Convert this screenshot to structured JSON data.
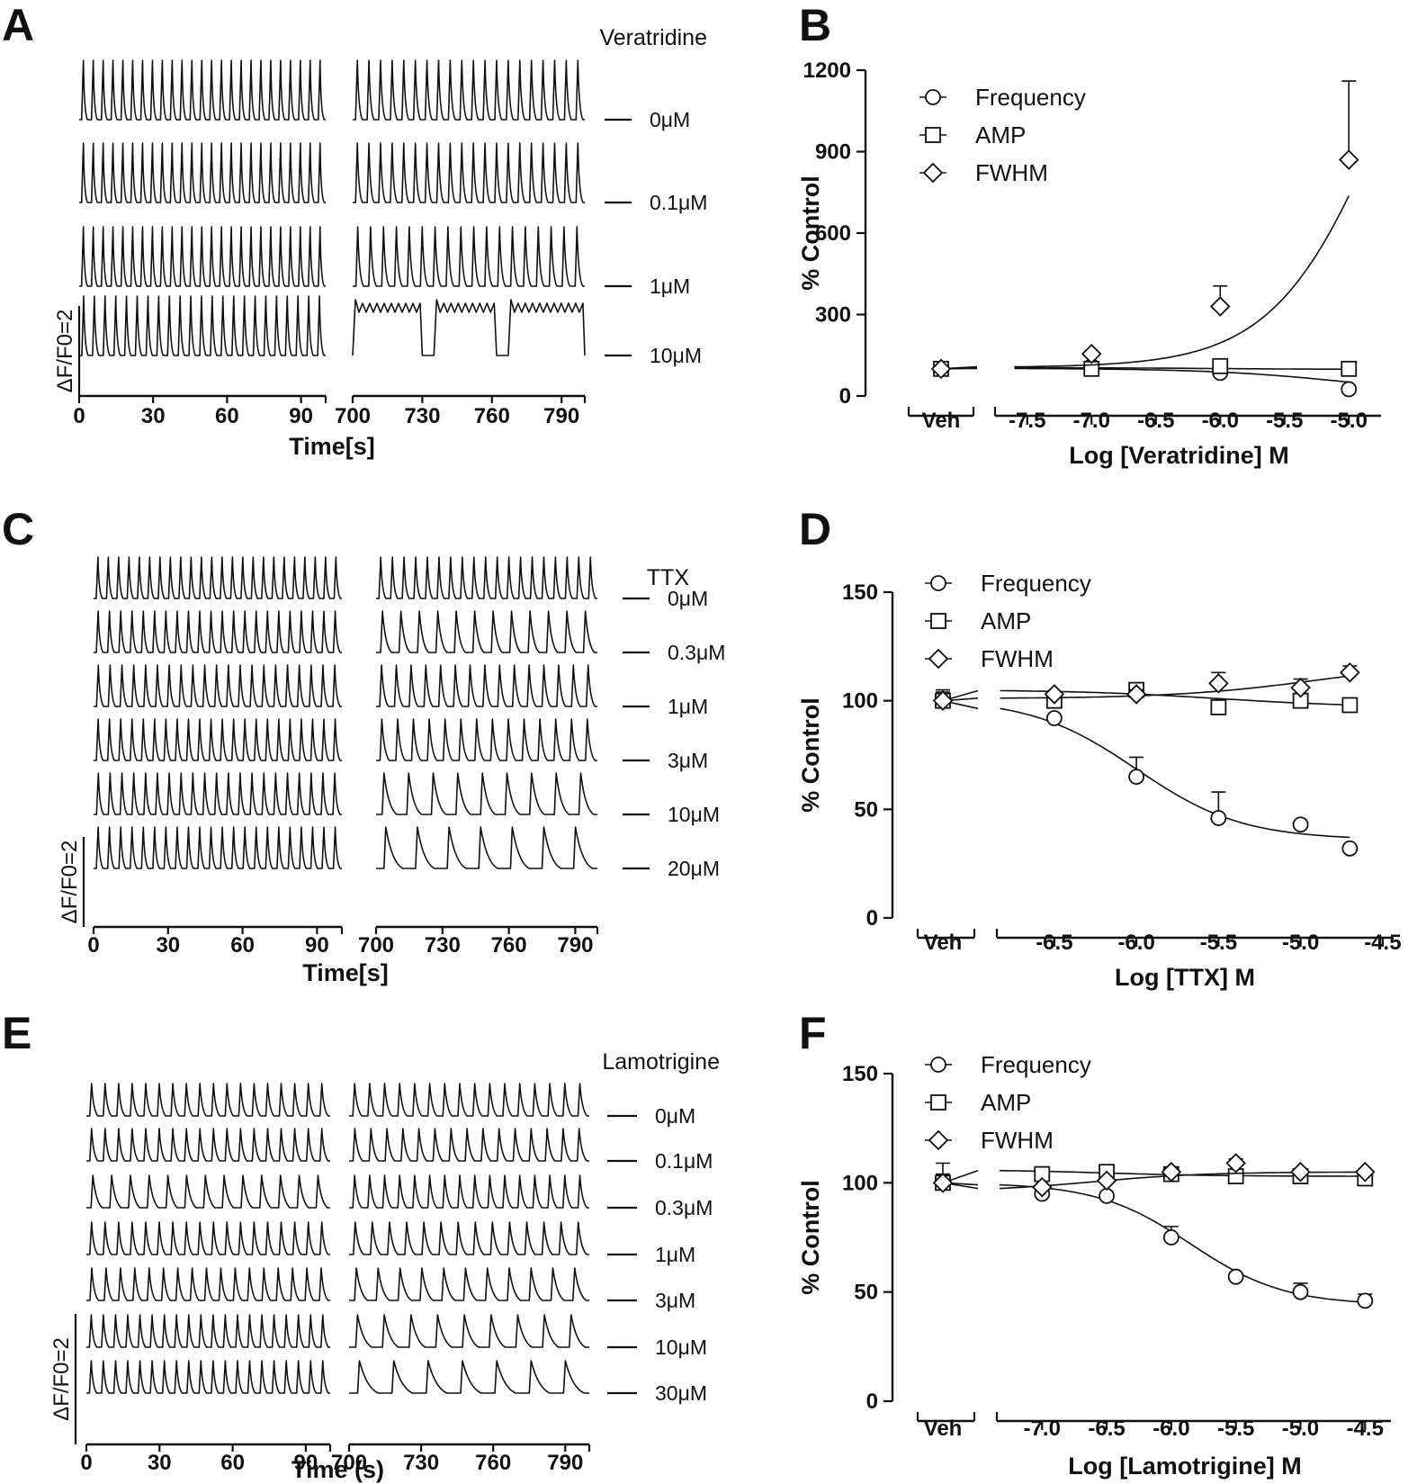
{
  "traces": [
    {
      "panel": "A",
      "drug": "Veratridine",
      "xlabel": "Time[s]",
      "scale_label": "ΔF/F0=2",
      "left_ticks": [
        0,
        30,
        60,
        90
      ],
      "right_ticks": [
        700,
        730,
        760,
        790
      ],
      "concentrations": [
        "0μM",
        "0.1μM",
        "1μM",
        "10μM"
      ],
      "beats_left": [
        25,
        25,
        25,
        23
      ],
      "beats_right": [
        20,
        20,
        18,
        0
      ]
    },
    {
      "panel": "C",
      "drug": "TTX",
      "xlabel": "Time[s]",
      "scale_label": "ΔF/F0=2",
      "left_ticks": [
        0,
        30,
        60,
        90
      ],
      "right_ticks": [
        700,
        730,
        760,
        790
      ],
      "concentrations": [
        "0μM",
        "0.3μM",
        "1μM",
        "3μM",
        "10μM",
        "20μM"
      ],
      "beats_left": [
        24,
        22,
        21,
        22,
        21,
        22
      ],
      "beats_right": [
        19,
        12,
        15,
        14,
        9,
        7
      ]
    },
    {
      "panel": "E",
      "drug": "Lamotrigine",
      "xlabel": "Time (s)",
      "scale_label": "ΔF/F0=2",
      "left_ticks": [
        0,
        30,
        60,
        90
      ],
      "right_ticks": [
        700,
        730,
        760,
        790
      ],
      "concentrations": [
        "0μM",
        "0.1μM",
        "0.3μM",
        "1μM",
        "3μM",
        "10μM",
        "30μM"
      ],
      "beats_left": [
        18,
        18,
        13,
        18,
        17,
        20,
        20
      ],
      "beats_right": [
        16,
        15,
        16,
        14,
        11,
        9,
        7
      ]
    }
  ],
  "chart_data": [
    {
      "panel": "B",
      "type": "line",
      "xlabel": "Log [Veratridine] M",
      "ylabel": "% Control",
      "veh_label": "Veh",
      "ylim": [
        0,
        1200
      ],
      "yticks": [
        0,
        300,
        600,
        900,
        1200
      ],
      "xlim": [
        -7.75,
        -4.75
      ],
      "xticks": [
        -7.5,
        -7.0,
        -6.5,
        -6.0,
        -5.5,
        -5.0
      ],
      "xtick_labels": [
        "-7.5",
        "-7.0",
        "-6.5",
        "-6.0",
        "-5.5",
        "-5.0"
      ],
      "series": [
        {
          "name": "Frequency",
          "marker": "circle",
          "veh": 100,
          "veh_err": 10,
          "x": [
            -7.0,
            -6.0,
            -5.0
          ],
          "values": [
            110,
            85,
            25
          ],
          "err": [
            0,
            0,
            0
          ],
          "fit": {
            "bottom": 0,
            "top": 102,
            "logec50": -5.0,
            "hill": -0.8
          }
        },
        {
          "name": "AMP",
          "marker": "square",
          "veh": 100,
          "veh_err": 8,
          "x": [
            -7.0,
            -6.0,
            -5.0
          ],
          "values": [
            100,
            110,
            100
          ],
          "err": [
            0,
            0,
            0
          ],
          "fit": {
            "bottom": 98,
            "top": 104,
            "logec50": -6.0,
            "hill": -1.0
          }
        },
        {
          "name": "FWHM",
          "marker": "diamond",
          "veh": 100,
          "veh_err": 8,
          "x": [
            -7.0,
            -6.0,
            -5.0
          ],
          "values": [
            155,
            330,
            870
          ],
          "err": [
            0,
            75,
            290
          ],
          "fit": {
            "bottom": 105,
            "top": 2000,
            "logec50": -4.7,
            "hill": 1.0
          }
        }
      ]
    },
    {
      "panel": "D",
      "type": "line",
      "xlabel": "Log [TTX] M",
      "ylabel": "% Control",
      "veh_label": "Veh",
      "ylim": [
        0,
        150
      ],
      "yticks": [
        0,
        50,
        100,
        150
      ],
      "xlim": [
        -6.85,
        -4.45
      ],
      "xticks": [
        -6.5,
        -6.0,
        -5.5,
        -5.0,
        -4.5
      ],
      "xtick_labels": [
        "-6.5",
        "-6.0",
        "-5.5",
        "-5.0",
        "-4.5"
      ],
      "series": [
        {
          "name": "Frequency",
          "marker": "circle",
          "veh": 100,
          "veh_err": 3,
          "x": [
            -6.5,
            -6.0,
            -5.5,
            -5.0,
            -4.7
          ],
          "values": [
            92,
            65,
            46,
            43,
            32
          ],
          "err": [
            0,
            9,
            12,
            0,
            0
          ],
          "fit": {
            "bottom": 36,
            "top": 101,
            "logec50": -6.0,
            "hill": -1.35
          }
        },
        {
          "name": "AMP",
          "marker": "square",
          "veh": 100,
          "veh_err": 5,
          "x": [
            -6.5,
            -6.0,
            -5.5,
            -5.0,
            -4.7
          ],
          "values": [
            100,
            105,
            97,
            100,
            98
          ],
          "err": [
            0,
            1,
            2,
            2,
            1
          ],
          "fit": {
            "bottom": 97,
            "top": 105,
            "logec50": -5.5,
            "hill": -1.0
          }
        },
        {
          "name": "FWHM",
          "marker": "diamond",
          "veh": 100,
          "veh_err": 4,
          "x": [
            -6.5,
            -6.0,
            -5.5,
            -5.0,
            -4.7
          ],
          "values": [
            103,
            103,
            108,
            106,
            113
          ],
          "err": [
            0,
            2,
            5,
            4,
            3
          ],
          "fit": {
            "bottom": 101,
            "top": 118,
            "logec50": -4.9,
            "hill": 1.0
          }
        }
      ]
    },
    {
      "panel": "F",
      "type": "line",
      "xlabel": "Log [Lamotrigine] M",
      "ylabel": "% Control",
      "veh_label": "Veh",
      "ylim": [
        0,
        150
      ],
      "yticks": [
        0,
        50,
        100,
        150
      ],
      "xlim": [
        -7.35,
        -4.3
      ],
      "xticks": [
        -7.0,
        -6.5,
        -6.0,
        -5.5,
        -5.0,
        -4.5
      ],
      "xtick_labels": [
        "-7.0",
        "-6.5",
        "-6.0",
        "-5.5",
        "-5.0",
        "-4.5"
      ],
      "series": [
        {
          "name": "Frequency",
          "marker": "circle",
          "veh": 100,
          "veh_err": 9,
          "x": [
            -7.0,
            -6.5,
            -6.0,
            -5.5,
            -5.0,
            -4.5
          ],
          "values": [
            95,
            94,
            75,
            57,
            50,
            46
          ],
          "err": [
            0,
            0,
            5,
            1,
            4,
            3
          ],
          "fit": {
            "bottom": 44,
            "top": 100,
            "logec50": -5.85,
            "hill": -1.2
          }
        },
        {
          "name": "AMP",
          "marker": "square",
          "veh": 100,
          "veh_err": 4,
          "x": [
            -7.0,
            -6.5,
            -6.0,
            -5.5,
            -5.0,
            -4.5
          ],
          "values": [
            104,
            105,
            104,
            103,
            103,
            102
          ],
          "err": [
            0,
            1,
            1,
            1,
            1,
            1
          ],
          "fit": {
            "bottom": 103,
            "top": 106,
            "logec50": -6.5,
            "hill": -1.0
          }
        },
        {
          "name": "FWHM",
          "marker": "diamond",
          "veh": 100,
          "veh_err": 4,
          "x": [
            -7.0,
            -6.5,
            -6.0,
            -5.5,
            -5.0,
            -4.5
          ],
          "values": [
            98,
            101,
            105,
            109,
            105,
            105
          ],
          "err": [
            0,
            1,
            1,
            2,
            1,
            1
          ],
          "fit": {
            "bottom": 96,
            "top": 105,
            "logec50": -6.6,
            "hill": 1.0
          }
        }
      ]
    }
  ]
}
